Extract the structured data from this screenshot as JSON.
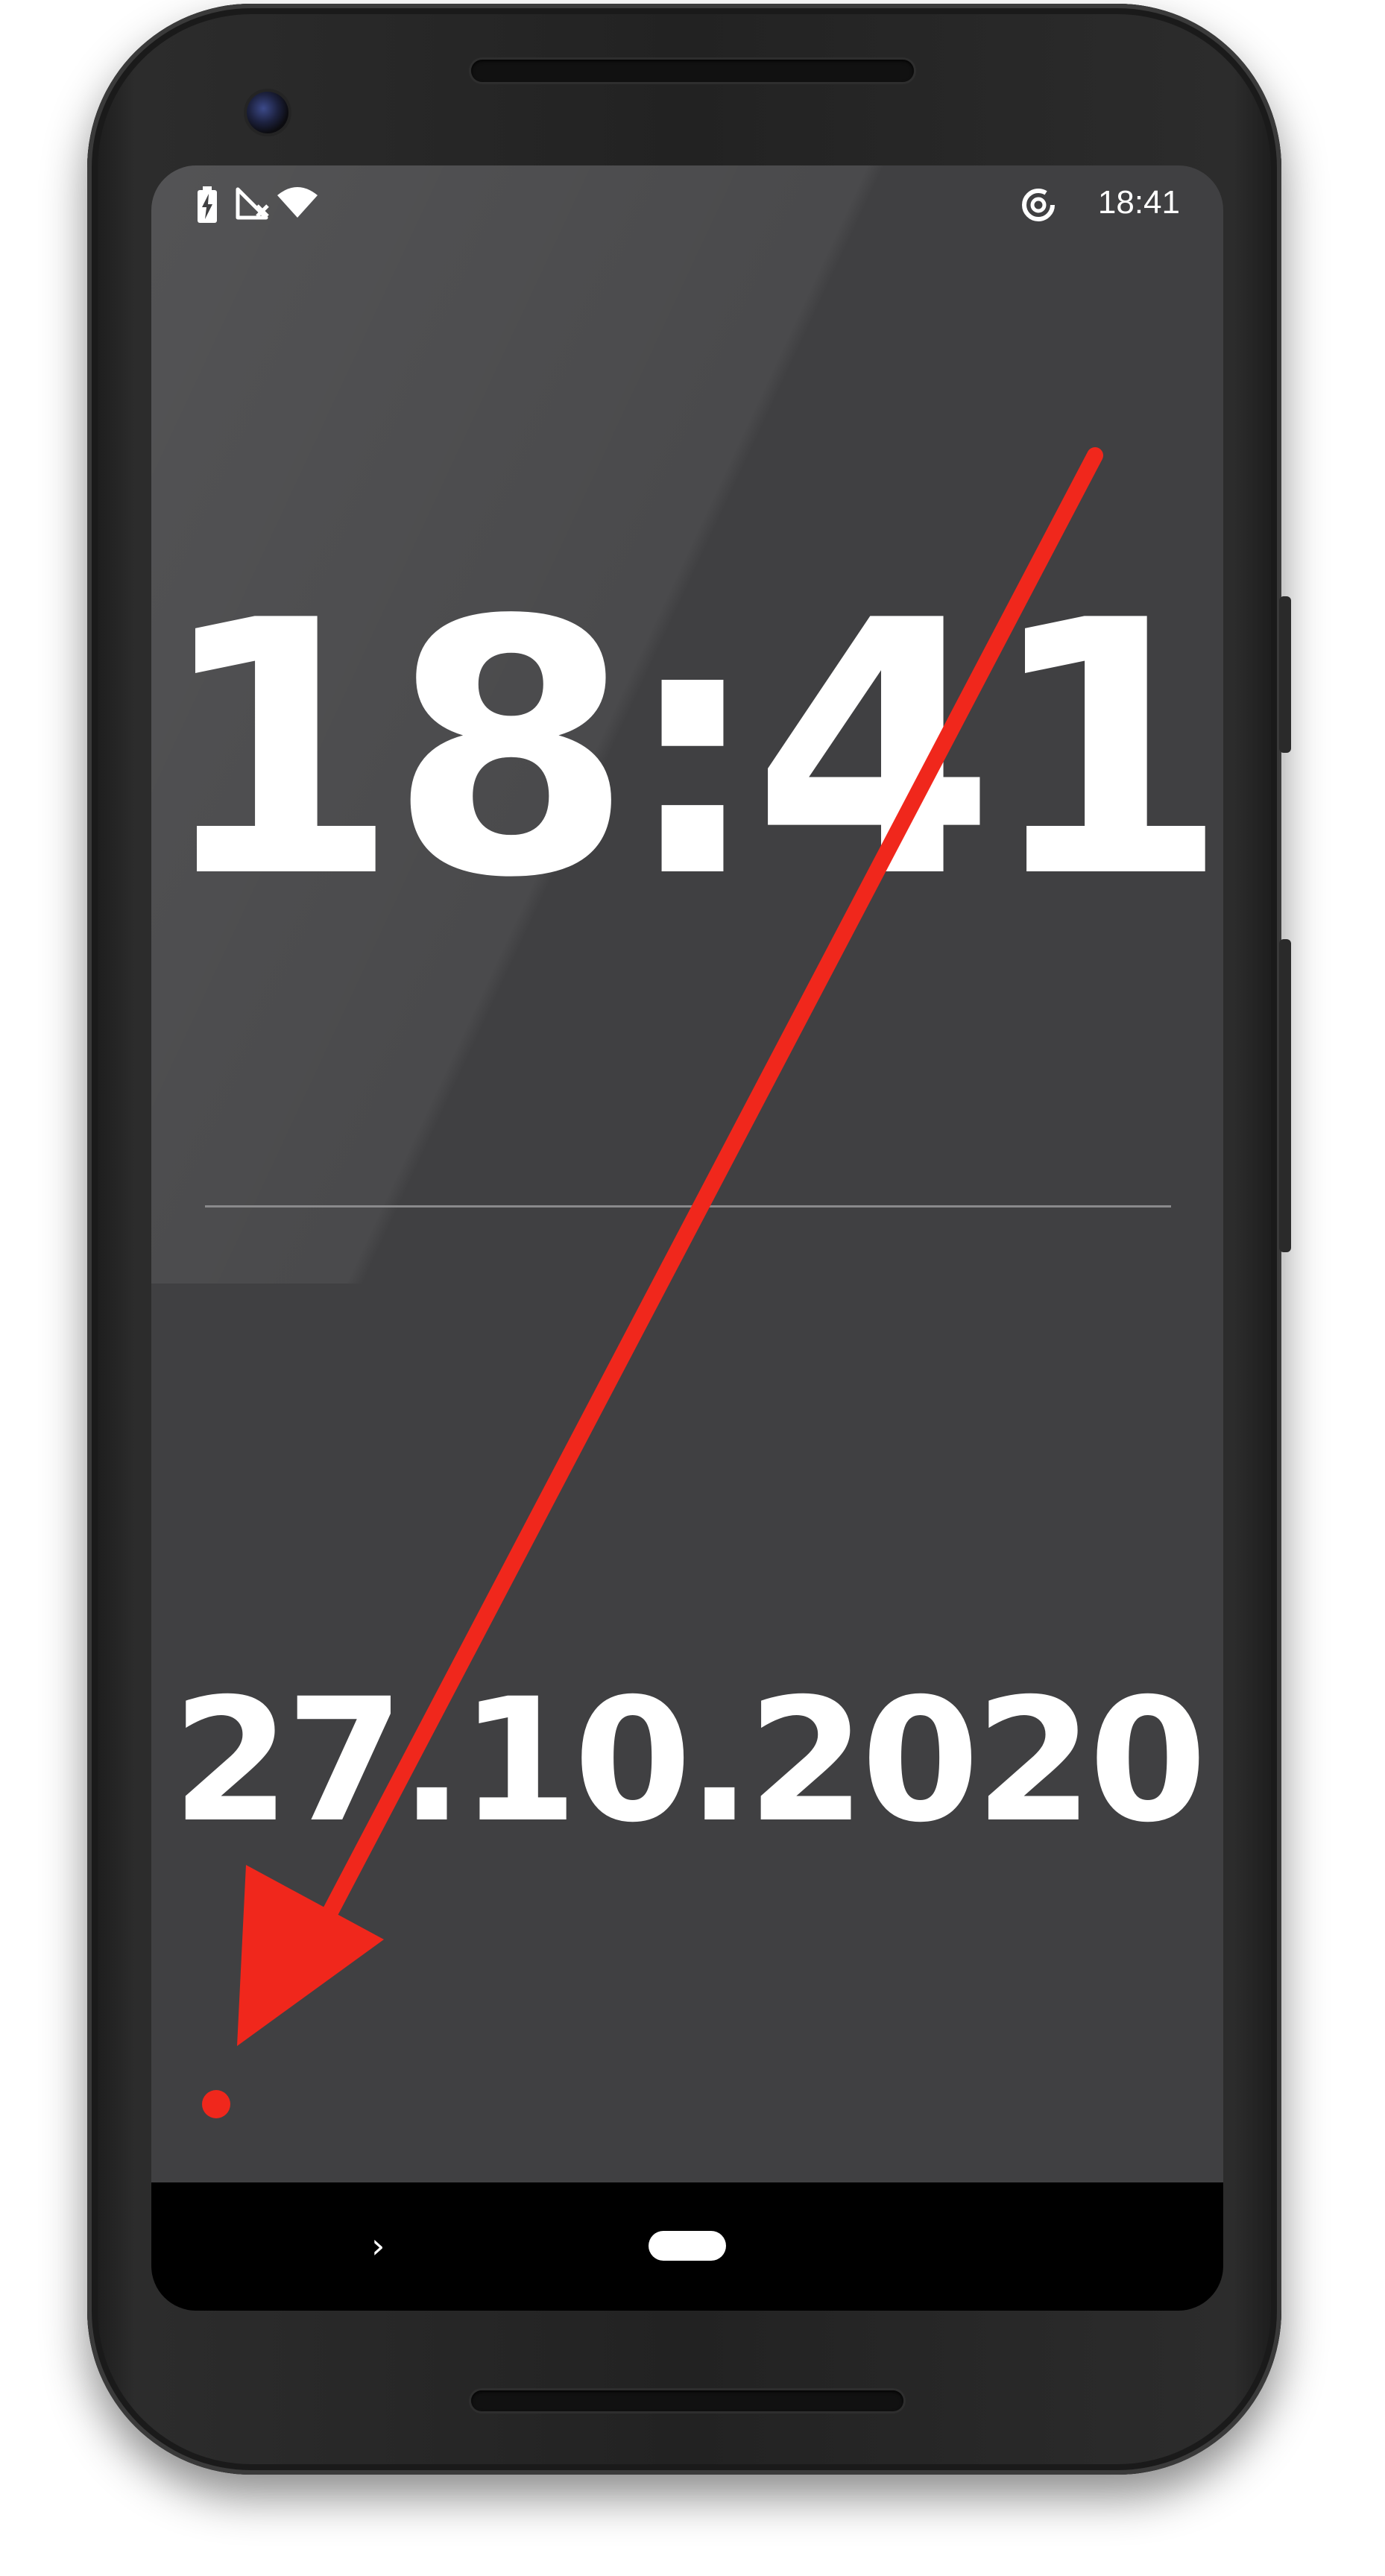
{
  "status_bar": {
    "time": "18:41",
    "icons": [
      "battery-charging-icon",
      "no-signal-icon",
      "wifi-icon",
      "data-saver-icon"
    ]
  },
  "clock": {
    "time": "18:41",
    "date": "27.10.2020"
  },
  "navigation": {
    "back": "›",
    "icons": [
      "back-chevron-icon",
      "home-pill-icon"
    ]
  },
  "annotation": {
    "color": "#f0271c",
    "icon": "red-arrow-annotation"
  },
  "colors": {
    "screen_background": "#404042",
    "text": "#ffffff",
    "dot": "#f0271c",
    "divider": "#8a8a8c"
  }
}
